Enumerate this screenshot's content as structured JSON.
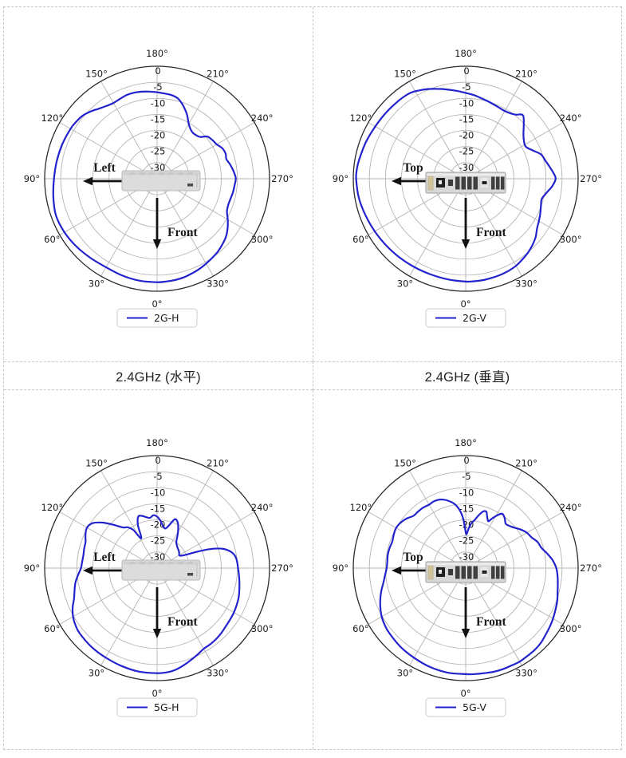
{
  "captions": {
    "left": "2.4GHz (水平)",
    "right": "2.4GHz (垂直)"
  },
  "polar_axes": {
    "angle_zero": "bottom",
    "angle_direction": "clockwise",
    "angle_labels": [
      "0°",
      "30°",
      "60°",
      "90°",
      "120°",
      "150°",
      "180°",
      "210°",
      "240°",
      "270°",
      "300°",
      "330°"
    ],
    "r_ticks": [
      0,
      -5,
      -10,
      -15,
      -20,
      -25,
      -30
    ],
    "r_tick_labels": [
      "0",
      "-5",
      "-10",
      "-15",
      "-20",
      "-25",
      "-30"
    ],
    "r_min": -35,
    "r_max": 0
  },
  "style": {
    "curve_color": "#2323cd",
    "grid_color": "#b4b4b4",
    "outer_ring_color": "#2b2b2b",
    "arrow_color": "#111111",
    "legend_border_color": "#cccccc",
    "text_color": "#1a1a1a"
  },
  "chart_data": [
    {
      "type": "line",
      "polar": true,
      "name": "2G-H",
      "legend_label": "2G-H",
      "arrow_back_label": "Left",
      "arrow_front_label": "Front",
      "device": "side-view",
      "points": [
        [
          0,
          -2.8
        ],
        [
          10,
          -2.8
        ],
        [
          20,
          -3.0
        ],
        [
          30,
          -3.2
        ],
        [
          40,
          -2.8
        ],
        [
          50,
          -2.2
        ],
        [
          60,
          -1.7
        ],
        [
          70,
          -1.5
        ],
        [
          80,
          -2.2
        ],
        [
          90,
          -2.9
        ],
        [
          100,
          -3.3
        ],
        [
          110,
          -3.6
        ],
        [
          120,
          -3.9
        ],
        [
          125,
          -4.2
        ],
        [
          130,
          -4.6
        ],
        [
          135,
          -5.5
        ],
        [
          140,
          -6.6
        ],
        [
          145,
          -7.4
        ],
        [
          150,
          -7.8
        ],
        [
          155,
          -7.6
        ],
        [
          160,
          -7.3
        ],
        [
          165,
          -7.3
        ],
        [
          170,
          -7.5
        ],
        [
          175,
          -7.8
        ],
        [
          180,
          -8.1
        ],
        [
          185,
          -8.4
        ],
        [
          190,
          -8.6
        ],
        [
          195,
          -9.3
        ],
        [
          200,
          -11.0
        ],
        [
          205,
          -13.0
        ],
        [
          210,
          -15.3
        ],
        [
          214,
          -16.4
        ],
        [
          218,
          -16.9
        ],
        [
          222,
          -16.8
        ],
        [
          226,
          -16.3
        ],
        [
          230,
          -14.6
        ],
        [
          235,
          -14.0
        ],
        [
          240,
          -13.6
        ],
        [
          245,
          -12.6
        ],
        [
          250,
          -12.3
        ],
        [
          254,
          -12.6
        ],
        [
          258,
          -12.0
        ],
        [
          262,
          -11.4
        ],
        [
          266,
          -10.9
        ],
        [
          270,
          -10.5
        ],
        [
          275,
          -10.8
        ],
        [
          280,
          -11.0
        ],
        [
          285,
          -11.3
        ],
        [
          290,
          -11.4
        ],
        [
          295,
          -11.0
        ],
        [
          300,
          -9.6
        ],
        [
          305,
          -8.2
        ],
        [
          310,
          -7.0
        ],
        [
          315,
          -6.2
        ],
        [
          320,
          -5.5
        ],
        [
          325,
          -5.0
        ],
        [
          330,
          -4.5
        ],
        [
          335,
          -4.0
        ],
        [
          340,
          -3.6
        ],
        [
          345,
          -3.2
        ],
        [
          350,
          -3.0
        ],
        [
          355,
          -2.9
        ]
      ]
    },
    {
      "type": "line",
      "polar": true,
      "name": "2G-V",
      "legend_label": "2G-V",
      "arrow_back_label": "Top",
      "arrow_front_label": "Front",
      "device": "rear-view",
      "points": [
        [
          0,
          -3.0
        ],
        [
          10,
          -3.2
        ],
        [
          20,
          -3.3
        ],
        [
          30,
          -3.2
        ],
        [
          40,
          -3.0
        ],
        [
          50,
          -2.7
        ],
        [
          60,
          -2.3
        ],
        [
          70,
          -1.8
        ],
        [
          80,
          -1.2
        ],
        [
          90,
          -0.9
        ],
        [
          95,
          -1.0
        ],
        [
          100,
          -1.3
        ],
        [
          110,
          -1.9
        ],
        [
          120,
          -2.5
        ],
        [
          130,
          -2.8
        ],
        [
          140,
          -3.0
        ],
        [
          147,
          -3.2
        ],
        [
          152,
          -3.9
        ],
        [
          157,
          -4.7
        ],
        [
          162,
          -5.6
        ],
        [
          168,
          -6.6
        ],
        [
          174,
          -7.5
        ],
        [
          180,
          -8.3
        ],
        [
          186,
          -8.9
        ],
        [
          192,
          -9.6
        ],
        [
          198,
          -10.1
        ],
        [
          204,
          -10.5
        ],
        [
          209,
          -10.7
        ],
        [
          214,
          -10.4
        ],
        [
          218,
          -9.7
        ],
        [
          222,
          -8.4
        ],
        [
          227,
          -10.3
        ],
        [
          232,
          -12.2
        ],
        [
          237,
          -13.4
        ],
        [
          242,
          -13.8
        ],
        [
          247,
          -12.4
        ],
        [
          252,
          -10.4
        ],
        [
          257,
          -9.6
        ],
        [
          262,
          -8.6
        ],
        [
          266,
          -7.7
        ],
        [
          270,
          -7.0
        ],
        [
          275,
          -8.0
        ],
        [
          280,
          -9.5
        ],
        [
          285,
          -10.5
        ],
        [
          290,
          -10.1
        ],
        [
          295,
          -9.4
        ],
        [
          300,
          -8.7
        ],
        [
          305,
          -7.9
        ],
        [
          310,
          -6.6
        ],
        [
          315,
          -5.7
        ],
        [
          320,
          -4.9
        ],
        [
          325,
          -4.3
        ],
        [
          330,
          -3.7
        ],
        [
          335,
          -3.4
        ],
        [
          340,
          -3.2
        ],
        [
          345,
          -3.1
        ],
        [
          350,
          -3.0
        ],
        [
          355,
          -3.0
        ]
      ]
    },
    {
      "type": "line",
      "polar": true,
      "name": "5G-H",
      "legend_label": "5G-H",
      "arrow_back_label": "Left",
      "arrow_front_label": "Front",
      "device": "side-view",
      "points": [
        [
          0,
          -2.3
        ],
        [
          10,
          -2.3
        ],
        [
          20,
          -2.6
        ],
        [
          30,
          -2.9
        ],
        [
          40,
          -3.1
        ],
        [
          50,
          -3.5
        ],
        [
          55,
          -4.0
        ],
        [
          60,
          -4.8
        ],
        [
          65,
          -6.0
        ],
        [
          70,
          -7.5
        ],
        [
          75,
          -8.4
        ],
        [
          80,
          -9.2
        ],
        [
          85,
          -10.3
        ],
        [
          90,
          -11.3
        ],
        [
          95,
          -11.6
        ],
        [
          100,
          -11.7
        ],
        [
          105,
          -11.5
        ],
        [
          110,
          -11.3
        ],
        [
          115,
          -10.4
        ],
        [
          120,
          -9.8
        ],
        [
          125,
          -10.6
        ],
        [
          130,
          -13.0
        ],
        [
          135,
          -16.0
        ],
        [
          140,
          -18.5
        ],
        [
          144,
          -19.3
        ],
        [
          148,
          -21.0
        ],
        [
          152,
          -24.5
        ],
        [
          156,
          -20.3
        ],
        [
          160,
          -17.9
        ],
        [
          164,
          -18.1
        ],
        [
          168,
          -18.8
        ],
        [
          172,
          -19.2
        ],
        [
          176,
          -18.5
        ],
        [
          180,
          -19.0
        ],
        [
          184,
          -20.2
        ],
        [
          188,
          -21.8
        ],
        [
          192,
          -22.4
        ],
        [
          196,
          -21.0
        ],
        [
          200,
          -18.8
        ],
        [
          204,
          -19.3
        ],
        [
          208,
          -21.0
        ],
        [
          212,
          -23.0
        ],
        [
          216,
          -24.8
        ],
        [
          220,
          -25.5
        ],
        [
          225,
          -26.0
        ],
        [
          230,
          -26.3
        ],
        [
          235,
          -26.6
        ],
        [
          240,
          -27.0
        ],
        [
          244,
          -26.0
        ],
        [
          248,
          -21.0
        ],
        [
          251,
          -16.5
        ],
        [
          254,
          -13.4
        ],
        [
          258,
          -11.3
        ],
        [
          262,
          -10.3
        ],
        [
          266,
          -10.0
        ],
        [
          270,
          -9.8
        ],
        [
          275,
          -9.4
        ],
        [
          280,
          -9.0
        ],
        [
          285,
          -8.5
        ],
        [
          290,
          -8.0
        ],
        [
          295,
          -7.7
        ],
        [
          300,
          -7.4
        ],
        [
          305,
          -7.2
        ],
        [
          310,
          -7.0
        ],
        [
          315,
          -6.6
        ],
        [
          320,
          -6.3
        ],
        [
          325,
          -6.1
        ],
        [
          330,
          -6.0
        ],
        [
          335,
          -5.3
        ],
        [
          340,
          -4.5
        ],
        [
          345,
          -3.6
        ],
        [
          350,
          -2.8
        ],
        [
          355,
          -2.4
        ]
      ]
    },
    {
      "type": "line",
      "polar": true,
      "name": "5G-V",
      "legend_label": "5G-V",
      "arrow_back_label": "Top",
      "arrow_front_label": "Front",
      "device": "rear-view",
      "points": [
        [
          0,
          -2.0
        ],
        [
          10,
          -2.0
        ],
        [
          20,
          -2.3
        ],
        [
          30,
          -2.8
        ],
        [
          40,
          -3.2
        ],
        [
          50,
          -3.8
        ],
        [
          55,
          -4.2
        ],
        [
          60,
          -4.8
        ],
        [
          65,
          -5.7
        ],
        [
          70,
          -6.7
        ],
        [
          75,
          -7.8
        ],
        [
          80,
          -9.0
        ],
        [
          85,
          -9.8
        ],
        [
          90,
          -10.4
        ],
        [
          95,
          -10.5
        ],
        [
          100,
          -10.4
        ],
        [
          105,
          -10.5
        ],
        [
          110,
          -10.7
        ],
        [
          115,
          -10.3
        ],
        [
          120,
          -10.0
        ],
        [
          125,
          -10.3
        ],
        [
          130,
          -11.0
        ],
        [
          135,
          -12.0
        ],
        [
          140,
          -12.0
        ],
        [
          145,
          -12.0
        ],
        [
          150,
          -12.2
        ],
        [
          154,
          -12.0
        ],
        [
          158,
          -12.1
        ],
        [
          162,
          -12.6
        ],
        [
          166,
          -13.5
        ],
        [
          170,
          -14.7
        ],
        [
          174,
          -16.8
        ],
        [
          177,
          -19.5
        ],
        [
          179,
          -22.5
        ],
        [
          181,
          -24.5
        ],
        [
          184,
          -22.8
        ],
        [
          187,
          -21.0
        ],
        [
          190,
          -20.0
        ],
        [
          194,
          -18.0
        ],
        [
          197,
          -16.6
        ],
        [
          200,
          -16.3
        ],
        [
          202,
          -17.3
        ],
        [
          204,
          -18.3
        ],
        [
          206,
          -18.8
        ],
        [
          208,
          -17.5
        ],
        [
          211,
          -15.8
        ],
        [
          214,
          -14.6
        ],
        [
          218,
          -15.3
        ],
        [
          222,
          -16.4
        ],
        [
          226,
          -16.1
        ],
        [
          230,
          -15.4
        ],
        [
          235,
          -14.1
        ],
        [
          240,
          -13.0
        ],
        [
          245,
          -12.4
        ],
        [
          250,
          -11.2
        ],
        [
          255,
          -10.6
        ],
        [
          260,
          -9.2
        ],
        [
          265,
          -7.8
        ],
        [
          270,
          -6.8
        ],
        [
          275,
          -6.3
        ],
        [
          280,
          -5.9
        ],
        [
          285,
          -5.4
        ],
        [
          290,
          -4.7
        ],
        [
          295,
          -4.2
        ],
        [
          300,
          -3.6
        ],
        [
          305,
          -3.1
        ],
        [
          310,
          -2.6
        ],
        [
          315,
          -2.0
        ],
        [
          320,
          -1.7
        ],
        [
          325,
          -1.6
        ],
        [
          330,
          -1.4
        ],
        [
          335,
          -1.5
        ],
        [
          340,
          -1.5
        ],
        [
          345,
          -1.6
        ],
        [
          350,
          -1.8
        ],
        [
          355,
          -1.9
        ]
      ]
    }
  ]
}
